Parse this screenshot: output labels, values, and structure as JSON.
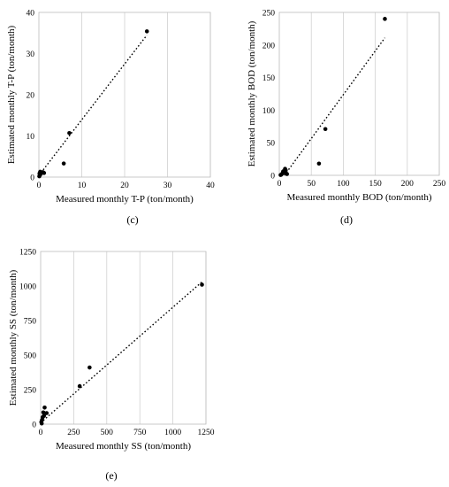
{
  "chart_data": [
    {
      "id": "c",
      "type": "scatter",
      "caption": "(c)",
      "xlabel": "Measured monthly T-P (ton/month)",
      "ylabel": "Estimated monthly T-P (ton/month)",
      "xlim": [
        0,
        40
      ],
      "ylim": [
        0,
        40
      ],
      "xticks": [
        0,
        10,
        20,
        30,
        40
      ],
      "yticks": [
        0,
        10,
        20,
        30,
        40
      ],
      "grid": "vertical",
      "points": [
        [
          25.2,
          35.4
        ],
        [
          7.1,
          10.7
        ],
        [
          5.8,
          3.3
        ],
        [
          0.3,
          1.3
        ],
        [
          0.6,
          1.1
        ],
        [
          0.9,
          1.2
        ],
        [
          1.2,
          1.0
        ],
        [
          0.2,
          0.5
        ],
        [
          0.1,
          0.2
        ],
        [
          0.4,
          0.7
        ],
        [
          0.15,
          0.9
        ]
      ],
      "trendline": [
        [
          0,
          0.4
        ],
        [
          25.2,
          34.5
        ]
      ]
    },
    {
      "id": "d",
      "type": "scatter",
      "caption": "(d)",
      "xlabel": "Measured monthly BOD (ton/month)",
      "ylabel": "Estimated monthly BOD (ton/month)",
      "xlim": [
        0,
        250
      ],
      "ylim": [
        0,
        250
      ],
      "xticks": [
        0,
        50,
        100,
        150,
        200,
        250
      ],
      "yticks": [
        0,
        50,
        100,
        150,
        200,
        250
      ],
      "grid": "vertical",
      "points": [
        [
          165,
          240
        ],
        [
          72,
          71
        ],
        [
          62,
          18
        ],
        [
          10,
          8
        ],
        [
          8,
          5
        ],
        [
          5,
          3
        ],
        [
          12,
          2
        ],
        [
          3,
          1
        ],
        [
          2,
          0.5
        ],
        [
          6,
          6
        ],
        [
          9,
          10
        ]
      ],
      "trendline": [
        [
          8,
          0
        ],
        [
          165,
          211
        ]
      ]
    },
    {
      "id": "e",
      "type": "scatter",
      "caption": "(e)",
      "xlabel": "Measured monthly SS (ton/month)",
      "ylabel": "Estimated monthly SS (ton/month)",
      "xlim": [
        0,
        1250
      ],
      "ylim": [
        0,
        1250
      ],
      "xticks": [
        0,
        250,
        500,
        750,
        1000,
        1250
      ],
      "yticks": [
        0,
        250,
        500,
        750,
        1000,
        1250
      ],
      "grid": "vertical",
      "points": [
        [
          1220,
          1010
        ],
        [
          370,
          410
        ],
        [
          295,
          275
        ],
        [
          30,
          120
        ],
        [
          20,
          85
        ],
        [
          45,
          80
        ],
        [
          15,
          50
        ],
        [
          10,
          30
        ],
        [
          5,
          15
        ],
        [
          25,
          60
        ],
        [
          8,
          5
        ]
      ],
      "trendline": [
        [
          0,
          10
        ],
        [
          1220,
          1030
        ]
      ]
    }
  ]
}
